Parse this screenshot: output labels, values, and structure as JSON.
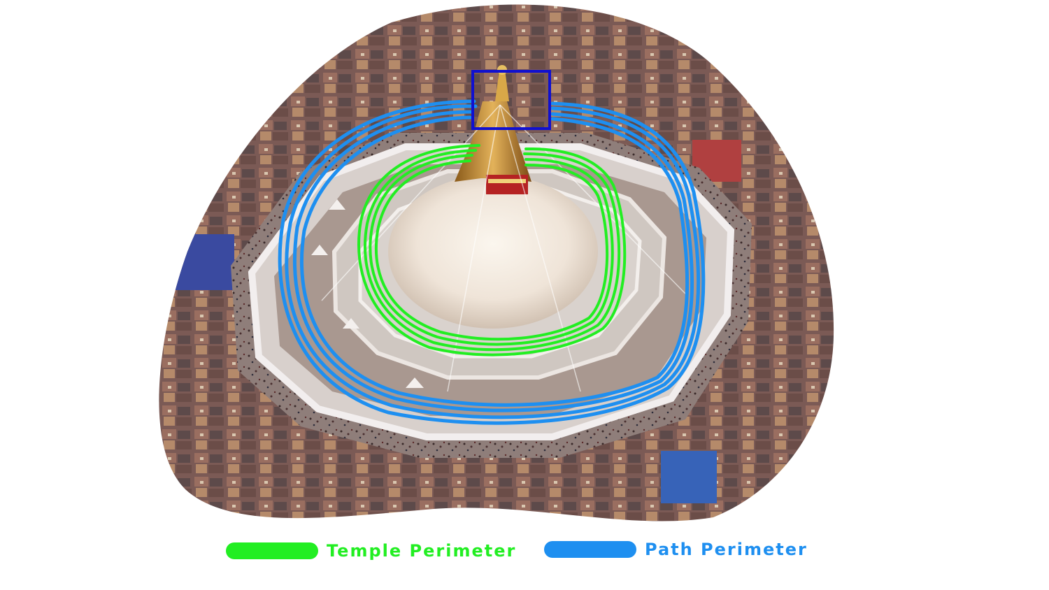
{
  "image": {
    "subject": "aerial-photo-stupa"
  },
  "colors": {
    "temple": "#22ee22",
    "path": "#1e8ff0",
    "highlight_box": "#1010d0"
  },
  "legend": {
    "temple_label": "Temple Perimeter",
    "path_label": "Path Perimeter"
  }
}
